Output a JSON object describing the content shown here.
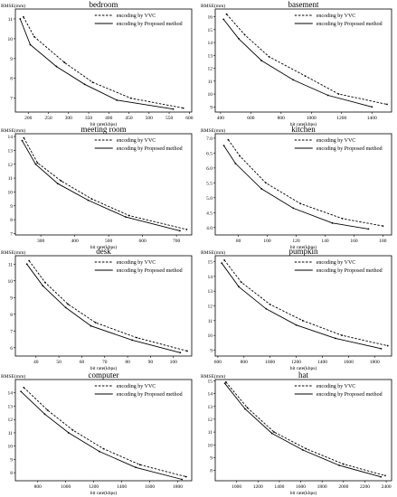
{
  "chart_data": [
    {
      "type": "line",
      "title": "bedroom",
      "ylabel": "RMSE(mm)",
      "xlabel": "bit rate(kbps)",
      "xlim": [
        168,
        606
      ],
      "ylim": [
        6.3,
        11.5
      ],
      "xticks": [
        200,
        250,
        300,
        350,
        400,
        450,
        500,
        550,
        600
      ],
      "yticks": [
        7,
        8,
        9,
        10,
        11
      ],
      "series": [
        {
          "name": "encoding by VVC",
          "style": "dashed",
          "x": [
            188,
            215,
            290,
            360,
            455,
            585
          ],
          "y": [
            11.1,
            10.1,
            8.8,
            7.8,
            7.0,
            6.5
          ]
        },
        {
          "name": "encoding by Proposed method",
          "style": "solid",
          "x": [
            180,
            205,
            270,
            340,
            420,
            560
          ],
          "y": [
            11.0,
            9.7,
            8.6,
            7.7,
            6.9,
            6.45
          ]
        }
      ]
    },
    {
      "type": "line",
      "title": "basement",
      "ylabel": "RMSE(mm)",
      "xlabel": "bit rate(kbps)",
      "xlim": [
        365,
        1530
      ],
      "ylim": [
        8.6,
        16.6
      ],
      "xticks": [
        400,
        600,
        800,
        1000,
        1200,
        1400
      ],
      "yticks": [
        9,
        10,
        11,
        12,
        13,
        14,
        15,
        16
      ],
      "series": [
        {
          "name": "encoding by VVC",
          "style": "dashed",
          "x": [
            440,
            560,
            720,
            960,
            1180,
            1500
          ],
          "y": [
            16.2,
            14.6,
            12.9,
            11.4,
            10.0,
            9.2
          ]
        },
        {
          "name": "encoding by Proposed method",
          "style": "solid",
          "x": [
            420,
            520,
            670,
            880,
            1110,
            1400
          ],
          "y": [
            15.8,
            14.3,
            12.6,
            11.1,
            9.9,
            9.0
          ]
        }
      ]
    },
    {
      "type": "line",
      "title": "meeting room",
      "ylabel": "RMSE(mm)",
      "xlabel": "bit rate(kbps)",
      "xlim": [
        225,
        745
      ],
      "ylim": [
        6.9,
        14.2
      ],
      "xticks": [
        300,
        400,
        500,
        600,
        700
      ],
      "yticks": [
        7,
        8,
        9,
        10,
        11,
        12,
        13,
        14
      ],
      "series": [
        {
          "name": "encoding by VVC",
          "style": "dashed",
          "x": [
            250,
            290,
            360,
            450,
            560,
            730
          ],
          "y": [
            13.9,
            12.1,
            10.8,
            9.5,
            8.3,
            7.3
          ]
        },
        {
          "name": "encoding by Proposed method",
          "style": "solid",
          "x": [
            245,
            285,
            350,
            440,
            550,
            710
          ],
          "y": [
            13.7,
            12.0,
            10.6,
            9.4,
            8.2,
            7.2
          ]
        }
      ]
    },
    {
      "type": "line",
      "title": "kitchen",
      "ylabel": "RMSE(mm)",
      "xlabel": "bit rate(kbps)",
      "xlim": [
        64,
        186
      ],
      "ylim": [
        3.75,
        7.15
      ],
      "xticks": [
        80,
        100,
        120,
        140,
        160,
        180
      ],
      "yticks": [
        4.0,
        4.5,
        5.0,
        5.5,
        6.0,
        6.5,
        7.0
      ],
      "series": [
        {
          "name": "encoding by VVC",
          "style": "dashed",
          "x": [
            73,
            81,
            99,
            123,
            152,
            180
          ],
          "y": [
            6.95,
            6.4,
            5.5,
            4.8,
            4.3,
            4.05
          ]
        },
        {
          "name": "encoding by Proposed method",
          "style": "solid",
          "x": [
            70,
            78,
            96,
            118,
            145,
            170
          ],
          "y": [
            6.75,
            6.15,
            5.3,
            4.65,
            4.15,
            3.95
          ]
        }
      ]
    },
    {
      "type": "line",
      "title": "desk",
      "ylabel": "RMSE(mm)",
      "xlabel": "bit rate(kbps)",
      "xlim": [
        31,
        108
      ],
      "ylim": [
        5.5,
        11.5
      ],
      "xticks": [
        40,
        50,
        60,
        70,
        80,
        90,
        100
      ],
      "yticks": [
        6,
        7,
        8,
        9,
        10,
        11
      ],
      "series": [
        {
          "name": "encoding by VVC",
          "style": "dashed",
          "x": [
            37,
            44,
            54,
            66,
            84,
            106
          ],
          "y": [
            11.2,
            9.9,
            8.6,
            7.5,
            6.6,
            5.8
          ]
        },
        {
          "name": "encoding by Proposed method",
          "style": "solid",
          "x": [
            36,
            43,
            53,
            64,
            82,
            103
          ],
          "y": [
            11.0,
            9.7,
            8.4,
            7.3,
            6.45,
            5.7
          ]
        }
      ]
    },
    {
      "type": "line",
      "title": "pumpkin",
      "ylabel": "RMSE(mm)",
      "xlabel": "bit rate(kbps)",
      "xlim": [
        580,
        1930
      ],
      "ylim": [
        8.6,
        15.4
      ],
      "xticks": [
        600,
        800,
        1000,
        1200,
        1400,
        1600,
        1800
      ],
      "yticks": [
        9,
        10,
        11,
        12,
        13,
        14,
        15
      ],
      "series": [
        {
          "name": "encoding by VVC",
          "style": "dashed",
          "x": [
            650,
            780,
            1000,
            1250,
            1550,
            1900
          ],
          "y": [
            15.1,
            13.6,
            12.1,
            11.0,
            10.0,
            9.3
          ]
        },
        {
          "name": "encoding by Proposed method",
          "style": "solid",
          "x": [
            630,
            760,
            970,
            1200,
            1500,
            1850
          ],
          "y": [
            14.9,
            13.3,
            11.8,
            10.7,
            9.8,
            9.1
          ]
        }
      ]
    },
    {
      "type": "line",
      "title": "computer",
      "ylabel": "RMSE(mm)",
      "xlabel": "bit rate(kbps)",
      "xlim": [
        640,
        1900
      ],
      "ylim": [
        7.4,
        15.0
      ],
      "xticks": [
        800,
        1000,
        1200,
        1400,
        1600,
        1800
      ],
      "yticks": [
        8,
        9,
        10,
        11,
        12,
        13,
        14
      ],
      "series": [
        {
          "name": "encoding by VVC",
          "style": "dashed",
          "x": [
            700,
            870,
            1050,
            1270,
            1530,
            1860
          ],
          "y": [
            14.4,
            12.7,
            11.2,
            9.8,
            8.6,
            7.7
          ]
        },
        {
          "name": "encoding by Proposed method",
          "style": "solid",
          "x": [
            680,
            850,
            1020,
            1240,
            1500,
            1830
          ],
          "y": [
            14.1,
            12.4,
            11.0,
            9.6,
            8.4,
            7.5
          ]
        }
      ]
    },
    {
      "type": "line",
      "title": "hat",
      "ylabel": "RMSE(mm)",
      "xlabel": "bit rate(kbps)",
      "xlim": [
        800,
        2450
      ],
      "ylim": [
        7.2,
        15.1
      ],
      "xticks": [
        1000,
        1200,
        1400,
        1600,
        1800,
        2000,
        2200,
        2400
      ],
      "yticks": [
        8,
        9,
        10,
        11,
        12,
        13,
        14,
        15
      ],
      "series": [
        {
          "name": "encoding by VVC",
          "style": "dashed",
          "x": [
            900,
            1100,
            1350,
            1650,
            2000,
            2390
          ],
          "y": [
            14.9,
            12.9,
            11.0,
            9.7,
            8.5,
            7.6
          ]
        },
        {
          "name": "encoding by Proposed method",
          "style": "solid",
          "x": [
            890,
            1080,
            1330,
            1620,
            1960,
            2350
          ],
          "y": [
            14.8,
            12.8,
            10.9,
            9.6,
            8.4,
            7.5
          ]
        }
      ]
    }
  ]
}
